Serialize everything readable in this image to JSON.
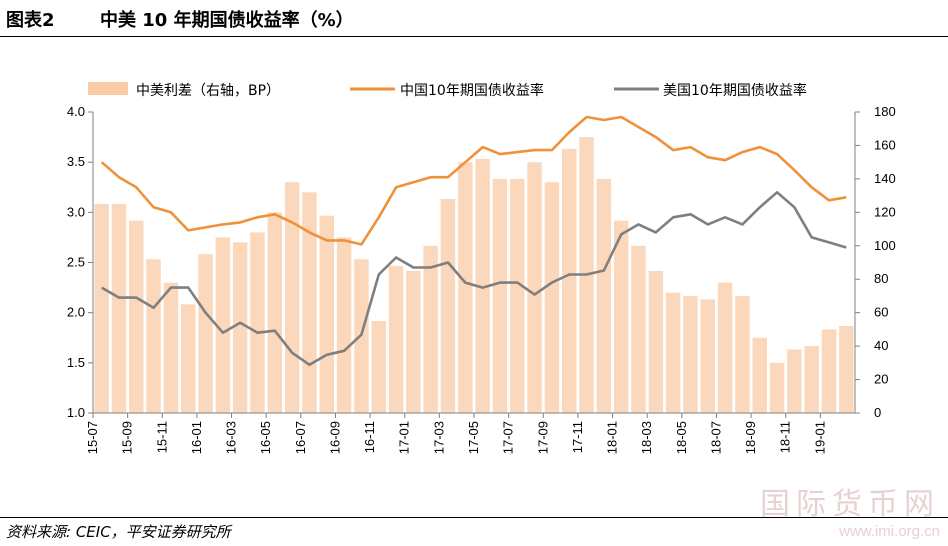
{
  "header": {
    "figure_label": "图表2",
    "title": "中美 10 年期国债收益率（%）"
  },
  "footer": {
    "source": "资料来源: CEIC，平安证券研究所"
  },
  "watermark": {
    "text_cn": "国际货币网",
    "url": "www.imi.org.cn"
  },
  "colors": {
    "spread": "#f9cba6",
    "china": "#f0913a",
    "us": "#7f7f7f"
  },
  "chart_data": {
    "type": "line",
    "grid": false,
    "legend_position": "top",
    "legend": [
      "中美利差（右轴，BP）",
      "中国10年期国债收益率",
      "美国10年期国债收益率"
    ],
    "x_tick_labels": [
      "15-07",
      "15-09",
      "15-11",
      "16-01",
      "16-03",
      "16-05",
      "16-07",
      "16-09",
      "16-11",
      "17-01",
      "17-03",
      "17-05",
      "17-07",
      "17-09",
      "17-11",
      "18-01",
      "18-03",
      "18-05",
      "18-07",
      "18-09",
      "18-11",
      "19-01"
    ],
    "x_range": [
      "2015-07",
      "2019-03"
    ],
    "y_left": {
      "min": 1.0,
      "max": 4.0,
      "ticks": [
        "1.0",
        "1.5",
        "2.0",
        "2.5",
        "3.0",
        "3.5",
        "4.0"
      ]
    },
    "y_right": {
      "min": 0,
      "max": 180,
      "ticks": [
        "0",
        "20",
        "40",
        "60",
        "80",
        "100",
        "120",
        "140",
        "160",
        "180"
      ]
    },
    "series": [
      {
        "name": "中美利差（右轴，BP）",
        "type": "bar",
        "axis": "right",
        "x": [
          "2015-07",
          "2015-08",
          "2015-09",
          "2015-10",
          "2015-11",
          "2015-12",
          "2016-01",
          "2016-02",
          "2016-03",
          "2016-04",
          "2016-05",
          "2016-06",
          "2016-07",
          "2016-08",
          "2016-09",
          "2016-10",
          "2016-11",
          "2016-12",
          "2017-01",
          "2017-02",
          "2017-03",
          "2017-04",
          "2017-05",
          "2017-06",
          "2017-07",
          "2017-08",
          "2017-09",
          "2017-10",
          "2017-11",
          "2017-12",
          "2018-01",
          "2018-02",
          "2018-03",
          "2018-04",
          "2018-05",
          "2018-06",
          "2018-07",
          "2018-08",
          "2018-09",
          "2018-10",
          "2018-11",
          "2018-12",
          "2019-01",
          "2019-02"
        ],
        "values": [
          125,
          125,
          115,
          92,
          78,
          65,
          95,
          105,
          102,
          108,
          120,
          138,
          132,
          118,
          105,
          92,
          55,
          88,
          85,
          100,
          128,
          150,
          152,
          140,
          140,
          150,
          138,
          158,
          165,
          140,
          115,
          100,
          85,
          72,
          70,
          68,
          78,
          70,
          45,
          30,
          38,
          40,
          50,
          52
        ]
      },
      {
        "name": "中国10年期国债收益率",
        "type": "line",
        "axis": "left",
        "x": [
          "2015-07",
          "2015-08",
          "2015-09",
          "2015-10",
          "2015-11",
          "2015-12",
          "2016-01",
          "2016-02",
          "2016-03",
          "2016-04",
          "2016-05",
          "2016-06",
          "2016-07",
          "2016-08",
          "2016-09",
          "2016-10",
          "2016-11",
          "2016-12",
          "2017-01",
          "2017-02",
          "2017-03",
          "2017-04",
          "2017-05",
          "2017-06",
          "2017-07",
          "2017-08",
          "2017-09",
          "2017-10",
          "2017-11",
          "2017-12",
          "2018-01",
          "2018-02",
          "2018-03",
          "2018-04",
          "2018-05",
          "2018-06",
          "2018-07",
          "2018-08",
          "2018-09",
          "2018-10",
          "2018-11",
          "2018-12",
          "2019-01",
          "2019-02"
        ],
        "values": [
          3.5,
          3.35,
          3.25,
          3.05,
          3.0,
          2.82,
          2.85,
          2.88,
          2.9,
          2.95,
          2.98,
          2.9,
          2.8,
          2.72,
          2.72,
          2.68,
          2.95,
          3.25,
          3.3,
          3.35,
          3.35,
          3.5,
          3.65,
          3.58,
          3.6,
          3.62,
          3.62,
          3.8,
          3.95,
          3.92,
          3.95,
          3.85,
          3.75,
          3.62,
          3.65,
          3.55,
          3.52,
          3.6,
          3.65,
          3.58,
          3.42,
          3.25,
          3.12,
          3.15
        ]
      },
      {
        "name": "美国10年期国债收益率",
        "type": "line",
        "axis": "left",
        "x": [
          "2015-07",
          "2015-08",
          "2015-09",
          "2015-10",
          "2015-11",
          "2015-12",
          "2016-01",
          "2016-02",
          "2016-03",
          "2016-04",
          "2016-05",
          "2016-06",
          "2016-07",
          "2016-08",
          "2016-09",
          "2016-10",
          "2016-11",
          "2016-12",
          "2017-01",
          "2017-02",
          "2017-03",
          "2017-04",
          "2017-05",
          "2017-06",
          "2017-07",
          "2017-08",
          "2017-09",
          "2017-10",
          "2017-11",
          "2017-12",
          "2018-01",
          "2018-02",
          "2018-03",
          "2018-04",
          "2018-05",
          "2018-06",
          "2018-07",
          "2018-08",
          "2018-09",
          "2018-10",
          "2018-11",
          "2018-12",
          "2019-01",
          "2019-02"
        ],
        "values": [
          2.25,
          2.15,
          2.15,
          2.05,
          2.25,
          2.25,
          2.0,
          1.8,
          1.9,
          1.8,
          1.82,
          1.6,
          1.48,
          1.58,
          1.62,
          1.78,
          2.38,
          2.55,
          2.45,
          2.45,
          2.5,
          2.3,
          2.25,
          2.3,
          2.3,
          2.18,
          2.3,
          2.38,
          2.38,
          2.42,
          2.78,
          2.88,
          2.8,
          2.95,
          2.98,
          2.88,
          2.95,
          2.88,
          3.05,
          3.2,
          3.05,
          2.75,
          2.7,
          2.65
        ]
      }
    ]
  }
}
